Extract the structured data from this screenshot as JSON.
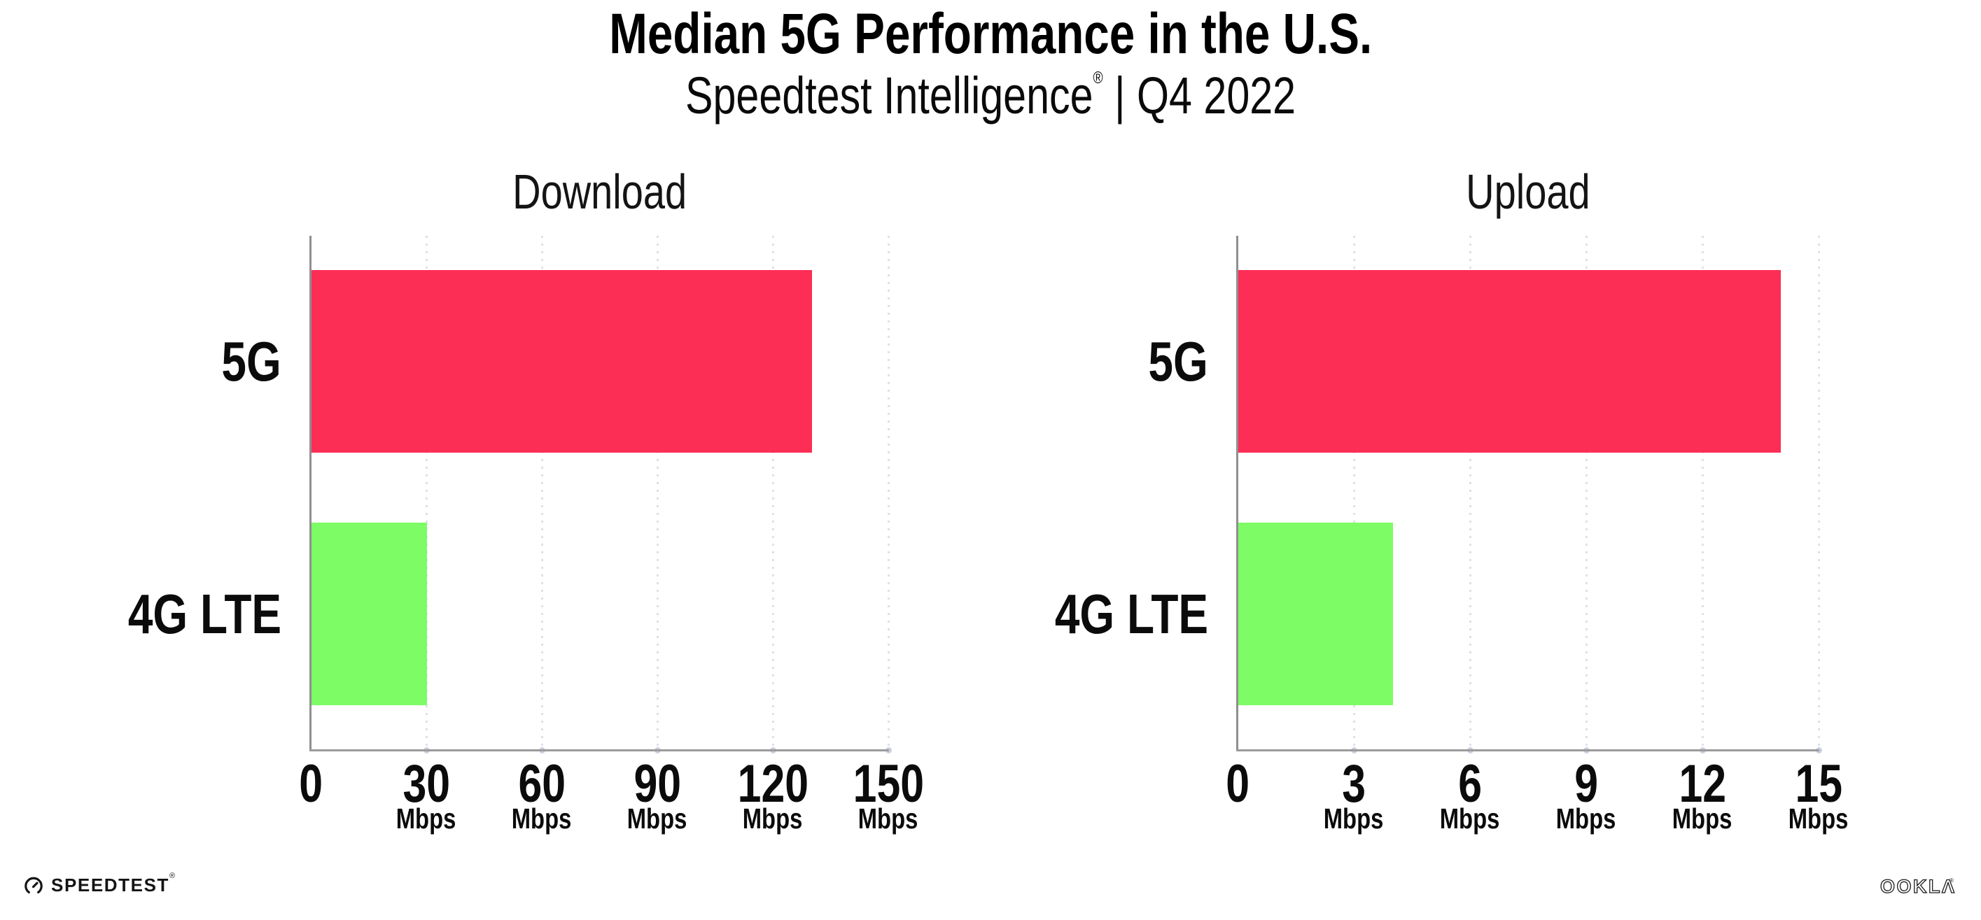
{
  "header": {
    "title": "Median 5G Performance in the U.S.",
    "subtitle_brand": "Speedtest Intelligence",
    "subtitle_reg": "®",
    "subtitle_rest": " | Q4 2022"
  },
  "chart_data": [
    {
      "type": "bar",
      "orientation": "horizontal",
      "title": "Download",
      "categories": [
        "5G",
        "4G LTE"
      ],
      "values": [
        130,
        30
      ],
      "unit": "Mbps",
      "xlabel": "",
      "ylabel": "",
      "xlim": [
        0,
        150
      ],
      "xticks": [
        0,
        30,
        60,
        90,
        120,
        150
      ],
      "bar_colors": [
        "#FC2E56",
        "#7DFC66"
      ],
      "gridlines": "vertical-dotted",
      "legend": "none"
    },
    {
      "type": "bar",
      "orientation": "horizontal",
      "title": "Upload",
      "categories": [
        "5G",
        "4G LTE"
      ],
      "values": [
        14,
        4
      ],
      "unit": "Mbps",
      "xlabel": "",
      "ylabel": "",
      "xlim": [
        0,
        15
      ],
      "xticks": [
        0,
        3,
        6,
        9,
        12,
        15
      ],
      "bar_colors": [
        "#FC2E56",
        "#7DFC66"
      ],
      "gridlines": "vertical-dotted",
      "legend": "none"
    }
  ],
  "footer": {
    "speedtest_label": "SPEEDTEST",
    "speedtest_mark": "®",
    "ookla_label": "OOKLA",
    "ookla_mark": "®"
  },
  "colors": {
    "bar_5g": "#FC2E56",
    "bar_4g_lte": "#7DFC66",
    "axis": "#8F8F8F",
    "gridline": "#DEE0EC",
    "text": "#111111",
    "background": "#FFFFFF"
  }
}
